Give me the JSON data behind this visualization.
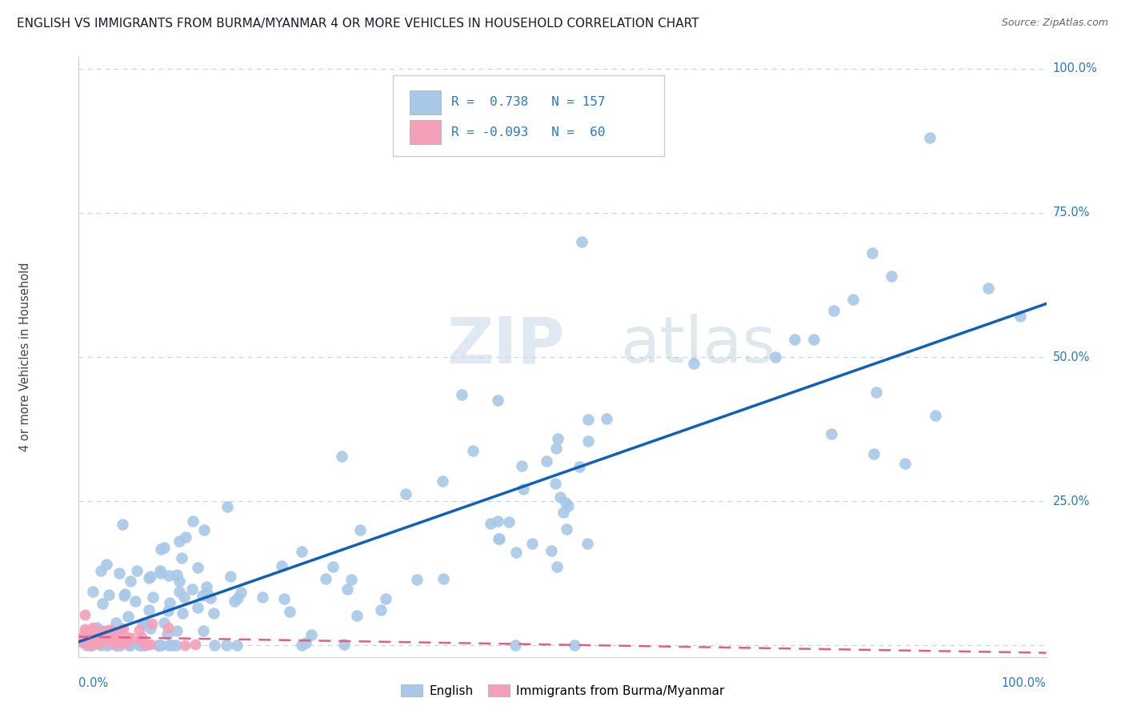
{
  "title": "ENGLISH VS IMMIGRANTS FROM BURMA/MYANMAR 4 OR MORE VEHICLES IN HOUSEHOLD CORRELATION CHART",
  "source": "Source: ZipAtlas.com",
  "ylabel": "4 or more Vehicles in Household",
  "watermark_zip": "ZIP",
  "watermark_atlas": "atlas",
  "legend_line1": "R =  0.738   N = 157",
  "legend_line2": "R = -0.093   N =  60",
  "english_color": "#a8c8e8",
  "burma_color": "#f4a0b8",
  "trend_english_color": "#1060b8",
  "trend_burma_color": "#e06080",
  "background_color": "#ffffff",
  "grid_color": "#c0d0e0",
  "axis_color": "#2878c8",
  "title_color": "#1a1a2e",
  "ylabel_color": "#444444",
  "watermark_zip_color": "#c8d8e8",
  "watermark_atlas_color": "#b0c8d8",
  "trend_english_intercept": 0.0,
  "trend_english_slope": 0.5,
  "trend_burma_intercept": 0.02,
  "trend_burma_slope": -0.025
}
